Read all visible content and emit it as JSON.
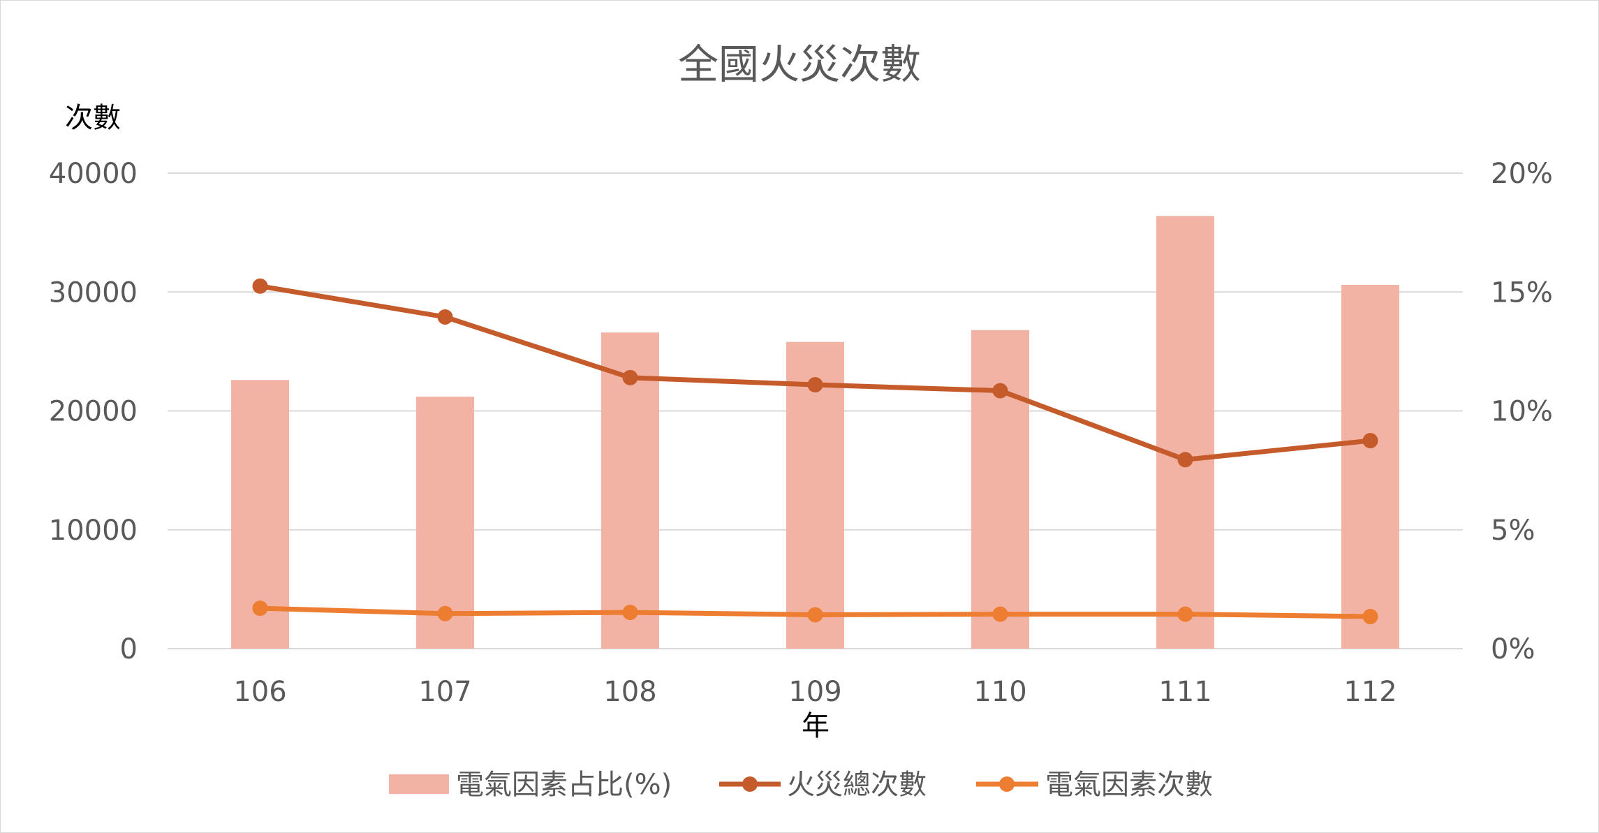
{
  "chart_data": {
    "type": "bar",
    "title": "全國火災次數",
    "xlabel": "年",
    "ylabel": "次數",
    "categories": [
      "106",
      "107",
      "108",
      "109",
      "110",
      "111",
      "112"
    ],
    "y_ticks": [
      "0",
      "10000",
      "20000",
      "30000",
      "40000"
    ],
    "y2_ticks": [
      "0%",
      "5%",
      "10%",
      "15%",
      "20%"
    ],
    "ylim": [
      0,
      40000
    ],
    "y2lim": [
      0,
      20
    ],
    "grid": true,
    "legend_position": "bottom",
    "series": [
      {
        "name": "電氣因素占比(%)",
        "type": "bar",
        "axis": "right",
        "color": "#f2b3a5",
        "values": [
          11.3,
          10.6,
          13.3,
          12.9,
          13.4,
          18.2,
          15.3
        ]
      },
      {
        "name": "火災總次數",
        "type": "line",
        "axis": "left",
        "color": "#c55a2a",
        "values": [
          30500,
          27900,
          22800,
          22200,
          21700,
          15900,
          17500
        ]
      },
      {
        "name": "電氣因素次數",
        "type": "line",
        "axis": "left",
        "color": "#ed7d31",
        "values": [
          3400,
          2950,
          3050,
          2850,
          2900,
          2900,
          2700
        ]
      }
    ]
  }
}
